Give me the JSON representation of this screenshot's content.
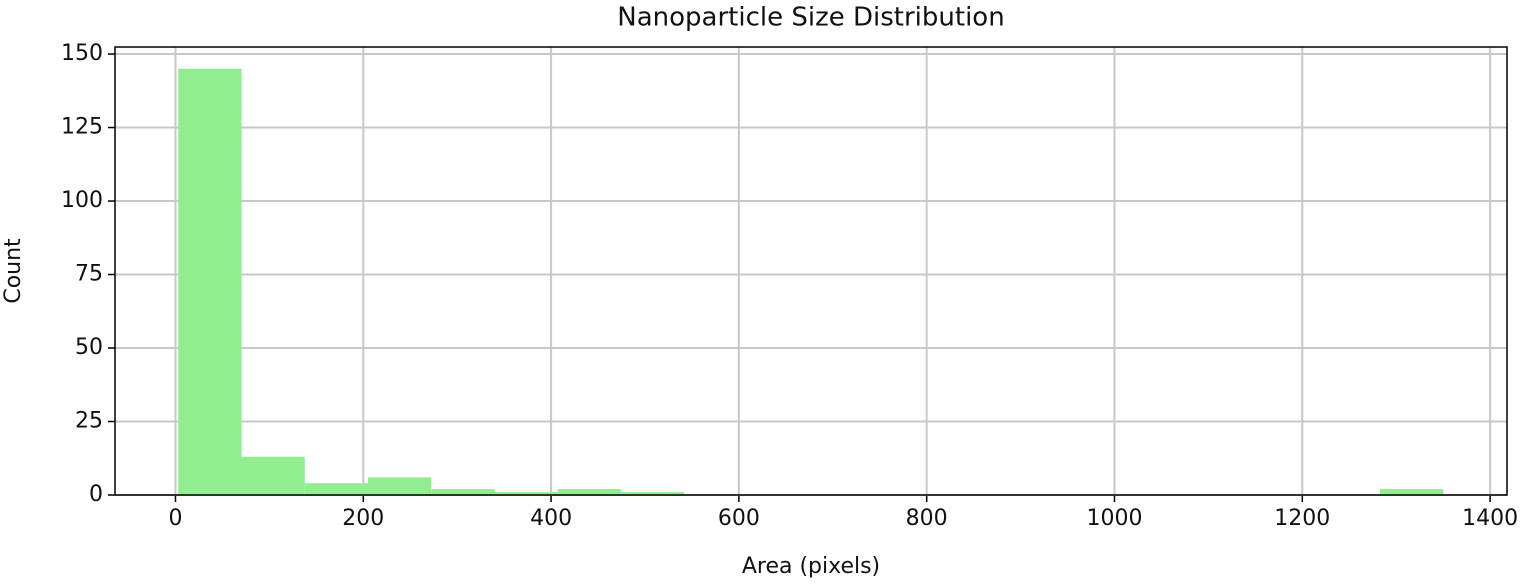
{
  "chart_data": {
    "type": "histogram",
    "title": "Nanoparticle Size Distribution",
    "x_label": "Area (pixels)",
    "y_label": "Count",
    "bins": [
      3,
      70.35,
      137.7,
      205.05,
      272.4,
      339.75,
      407.1,
      474.45,
      541.8,
      609.15,
      676.5,
      743.85,
      811.2,
      878.55,
      945.9,
      1013.25,
      1080.6,
      1147.95,
      1215.3,
      1282.65,
      1350
    ],
    "counts": [
      145,
      13,
      4,
      6,
      2,
      1,
      2,
      1,
      0,
      0,
      0,
      0,
      0,
      0,
      0,
      0,
      0,
      0,
      0,
      2
    ],
    "color": "#90ee90",
    "xlim": [
      -64.4,
      1418
    ],
    "ylim": [
      0,
      152.4
    ],
    "xticks": [
      0,
      200,
      400,
      600,
      800,
      1000,
      1200,
      1400
    ],
    "yticks": [
      0,
      25,
      50,
      75,
      100,
      125,
      150
    ],
    "grid": true
  }
}
